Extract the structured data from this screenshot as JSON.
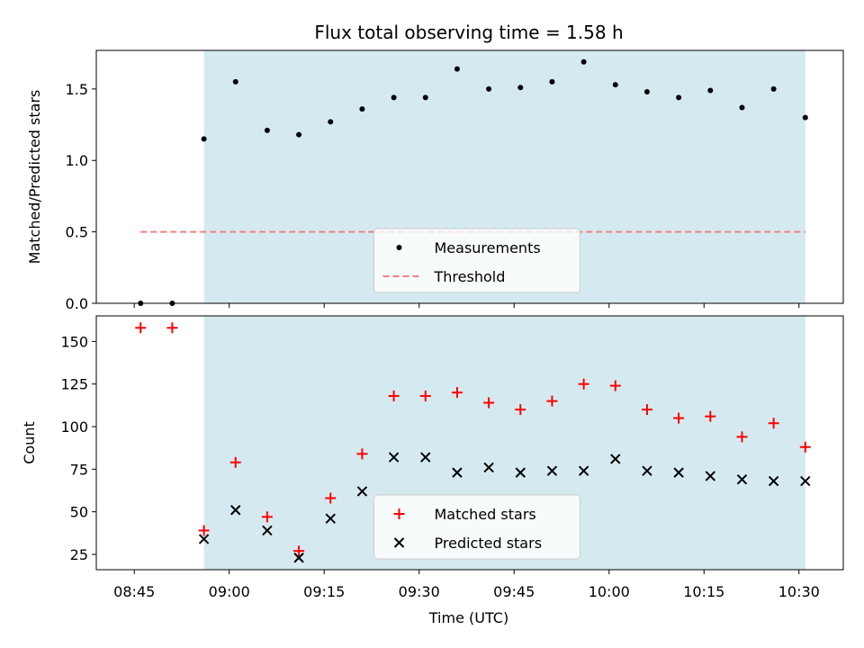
{
  "figure": {
    "title": "Flux total observing time = 1.58 h",
    "xlabel": "Time (UTC)",
    "x_ticks": [
      "08:45",
      "09:00",
      "09:15",
      "09:30",
      "09:45",
      "10:00",
      "10:15",
      "10:30"
    ]
  },
  "chart_data": [
    {
      "type": "scatter",
      "ylabel": "Matched/Predicted stars",
      "xlim": [
        "08:39",
        "10:37"
      ],
      "ylim": [
        0,
        1.77
      ],
      "y_ticks": [
        "0.0",
        "0.5",
        "1.0",
        "1.5"
      ],
      "y_tick_values": [
        0,
        0.5,
        1.0,
        1.5
      ],
      "observing_window": {
        "start": "08:56",
        "end": "10:31",
        "color": "#d4eaf0"
      },
      "legend": {
        "placement": "lower center",
        "entries": [
          "Measurements",
          "Threshold"
        ]
      },
      "series": [
        {
          "name": "Measurements",
          "marker": "dot",
          "color": "#000000",
          "x": [
            "08:46",
            "08:51",
            "08:56",
            "09:01",
            "09:06",
            "09:11",
            "09:16",
            "09:21",
            "09:26",
            "09:31",
            "09:36",
            "09:41",
            "09:46",
            "09:51",
            "09:56",
            "10:01",
            "10:06",
            "10:11",
            "10:16",
            "10:21",
            "10:26",
            "10:31"
          ],
          "y": [
            0,
            0,
            1.15,
            1.55,
            1.21,
            1.18,
            1.27,
            1.36,
            1.44,
            1.44,
            1.64,
            1.5,
            1.51,
            1.55,
            1.69,
            1.53,
            1.48,
            1.44,
            1.49,
            1.37,
            1.5,
            1.3
          ]
        },
        {
          "name": "Threshold",
          "marker": "dashed-line",
          "color": "#f08080",
          "x": [
            "08:46",
            "10:31"
          ],
          "y": [
            0.5,
            0.5
          ]
        }
      ]
    },
    {
      "type": "scatter",
      "ylabel": "Count",
      "xlim": [
        "08:39",
        "10:37"
      ],
      "ylim": [
        16,
        165
      ],
      "y_ticks": [
        "25",
        "50",
        "75",
        "100",
        "125",
        "150"
      ],
      "y_tick_values": [
        25,
        50,
        75,
        100,
        125,
        150
      ],
      "observing_window": {
        "start": "08:56",
        "end": "10:31",
        "color": "#d4eaf0"
      },
      "legend": {
        "placement": "lower center",
        "entries": [
          "Matched stars",
          "Predicted stars"
        ]
      },
      "series": [
        {
          "name": "Matched stars",
          "marker": "plus",
          "color": "#ff0000",
          "x": [
            "08:46",
            "08:51",
            "08:56",
            "09:01",
            "09:06",
            "09:11",
            "09:16",
            "09:21",
            "09:26",
            "09:31",
            "09:36",
            "09:41",
            "09:46",
            "09:51",
            "09:56",
            "10:01",
            "10:06",
            "10:11",
            "10:16",
            "10:21",
            "10:26",
            "10:31"
          ],
          "y": [
            158,
            158,
            39,
            79,
            47,
            27,
            58,
            84,
            118,
            118,
            120,
            114,
            110,
            115,
            125,
            124,
            110,
            105,
            106,
            94,
            102,
            88
          ]
        },
        {
          "name": "Predicted stars",
          "marker": "cross",
          "color": "#000000",
          "x": [
            "08:56",
            "09:01",
            "09:06",
            "09:11",
            "09:16",
            "09:21",
            "09:26",
            "09:31",
            "09:36",
            "09:41",
            "09:46",
            "09:51",
            "09:56",
            "10:01",
            "10:06",
            "10:11",
            "10:16",
            "10:21",
            "10:26",
            "10:31"
          ],
          "y": [
            34,
            51,
            39,
            23,
            46,
            62,
            82,
            82,
            73,
            76,
            73,
            74,
            74,
            81,
            74,
            73,
            71,
            69,
            68,
            68
          ]
        }
      ]
    }
  ]
}
